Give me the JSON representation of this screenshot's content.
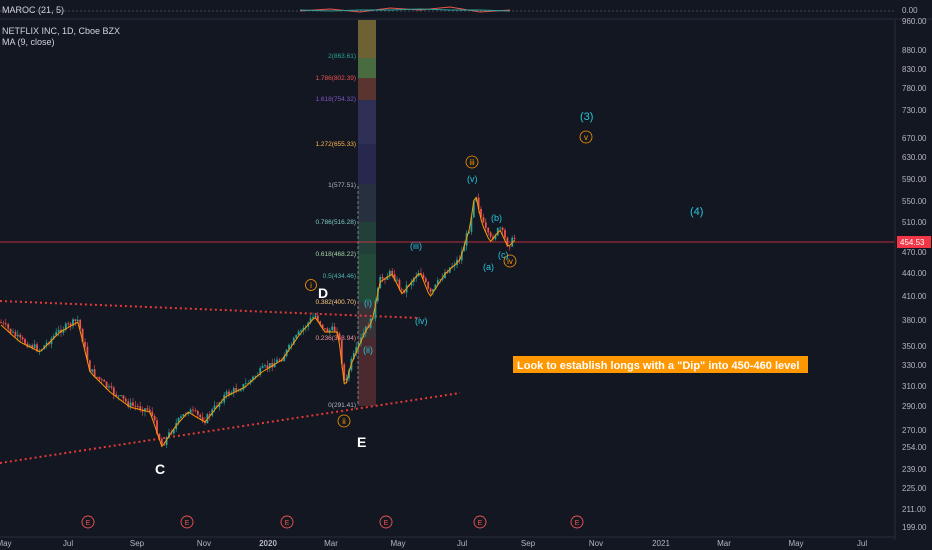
{
  "oscillator": {
    "label": "MAROC (21, 5)",
    "zero_label": "0.00"
  },
  "legend": {
    "symbol": "NETFLIX INC, 1D, Cboe BZX",
    "ma": "MA (9, close)"
  },
  "current_price": "454.53",
  "price_axis": [
    "960.00",
    "880.00",
    "830.00",
    "780.00",
    "730.00",
    "670.00",
    "630.00",
    "590.00",
    "550.00",
    "510.00",
    "470.00",
    "440.00",
    "410.00",
    "380.00",
    "350.00",
    "330.00",
    "310.00",
    "290.00",
    "270.00",
    "254.00",
    "239.00",
    "225.00",
    "211.00",
    "199.00"
  ],
  "time_axis": [
    "May",
    "Jul",
    "Sep",
    "Nov",
    "2020",
    "Mar",
    "May",
    "Jul",
    "Sep",
    "Nov",
    "2021",
    "Mar",
    "May",
    "Jul"
  ],
  "fib_levels": [
    "2(863.61)",
    "1.786(802.39)",
    "1.618(754.32)",
    "1.272(655.33)",
    "1(577.51)",
    "0.786(516.28)",
    "0.618(468.22)",
    "0.5(434.46)",
    "0.382(400.70)",
    "0.236(358.94)",
    "0(291.41)"
  ],
  "wave_labels": {
    "i": "i",
    "ii": "ii",
    "iii": "iii",
    "iv": "iv",
    "v": "v",
    "sub_i": "(i)",
    "sub_ii": "(ii)",
    "sub_iii": "(iii)",
    "sub_iv": "(iv)",
    "sub_v": "(v)",
    "sub_a": "(a)",
    "sub_b": "(b)",
    "sub_c": "(c)",
    "big_3": "(3)",
    "big_4": "(4)",
    "C": "C",
    "D": "D",
    "E": "E"
  },
  "event_marker": "E",
  "annotation": "Look to establish longs with a \"Dip\" into 450-460 level",
  "colors": {
    "background": "#131722",
    "candle_up": "#26a69a",
    "candle_down": "#ef5350",
    "ma_line": "#ff9800",
    "trendline": "#e53935",
    "price_line": "#f23645",
    "wave_orange": "#ff9800",
    "wave_teal": "#26c6da",
    "annotation_bg": "#ff9800"
  }
}
